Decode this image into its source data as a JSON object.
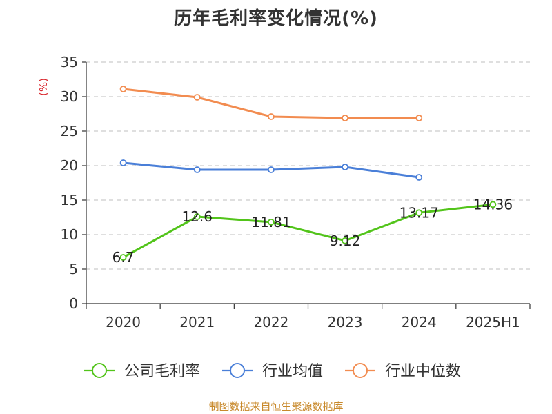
{
  "chart_data": {
    "type": "line",
    "title": "历年毛利率变化情况(%)",
    "ylabel": "(%)",
    "categories": [
      "2020",
      "2021",
      "2022",
      "2023",
      "2024",
      "2025H1"
    ],
    "ylim": [
      0,
      35
    ],
    "yticks": [
      0,
      5,
      10,
      15,
      20,
      25,
      30,
      35
    ],
    "grid": true,
    "legend_position": "bottom",
    "series": [
      {
        "name": "公司毛利率",
        "color": "#52c41a",
        "values": [
          6.7,
          12.6,
          11.81,
          9.12,
          13.17,
          14.36
        ],
        "labels": [
          "6.7",
          "12.6",
          "11.81",
          "9.12",
          "13.17",
          "14.36"
        ]
      },
      {
        "name": "行业均值",
        "color": "#4a7fd8",
        "values": [
          20.4,
          19.4,
          19.4,
          19.8,
          18.3,
          null
        ]
      },
      {
        "name": "行业中位数",
        "color": "#f28c50",
        "values": [
          31.1,
          29.9,
          27.1,
          26.9,
          26.9,
          null
        ]
      }
    ]
  },
  "footer": {
    "source": "制图数据来自恒生聚源数据库"
  },
  "colors": {
    "ylabel": "#d9262c",
    "grid": "#cccccc",
    "axis": "#333333"
  }
}
